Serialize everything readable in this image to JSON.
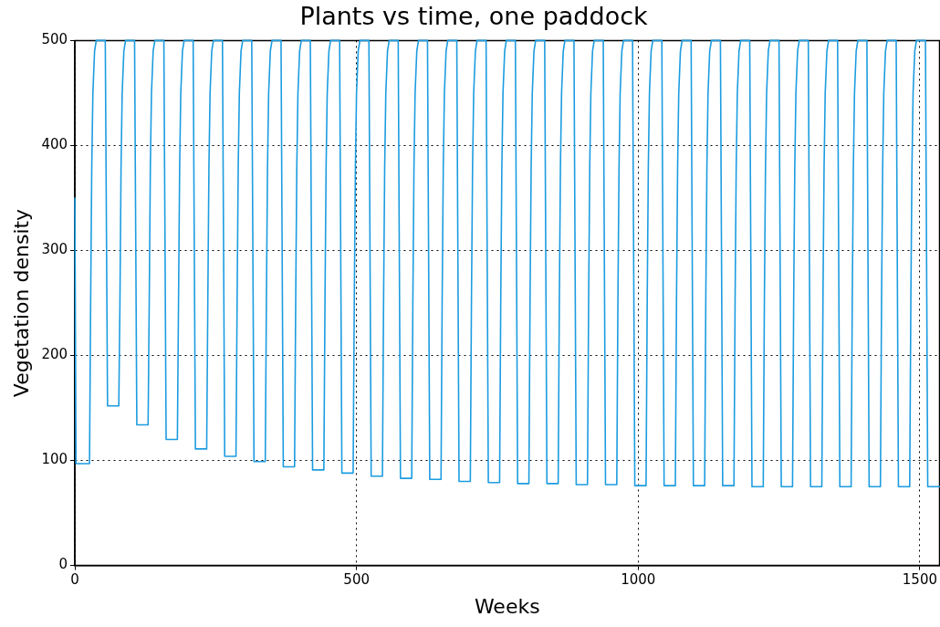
{
  "chart_data": {
    "type": "line",
    "title": "Plants vs time, one paddock",
    "xlabel": "Weeks",
    "ylabel": "Vegetation density",
    "xlim": [
      0,
      1535
    ],
    "xticks": [
      0,
      500,
      1000,
      1500
    ],
    "ylim": [
      0,
      500
    ],
    "yticks": [
      0,
      100,
      200,
      300,
      400,
      500
    ],
    "grid": true,
    "legend": false,
    "marker": "none",
    "line_style": "solid",
    "series": [
      {
        "color": "#1c9ce0",
        "x": [
          0,
          2,
          26,
          28,
          30,
          32,
          35,
          38,
          54,
          58,
          78,
          80,
          82,
          84,
          87,
          90,
          106,
          110,
          130,
          132,
          134,
          136,
          139,
          142,
          158,
          162,
          182,
          184,
          186,
          188,
          191,
          194,
          210,
          214,
          234,
          236,
          238,
          240,
          243,
          246,
          262,
          266,
          286,
          288,
          290,
          292,
          295,
          298,
          314,
          318,
          338,
          340,
          342,
          344,
          347,
          350,
          366,
          370,
          390,
          392,
          394,
          396,
          399,
          402,
          418,
          422,
          442,
          444,
          446,
          448,
          451,
          454,
          470,
          474,
          494,
          496,
          498,
          500,
          503,
          506,
          522,
          526,
          546,
          548,
          550,
          552,
          555,
          558,
          574,
          578,
          598,
          600,
          602,
          604,
          607,
          610,
          626,
          630,
          650,
          652,
          654,
          656,
          659,
          662,
          678,
          682,
          702,
          704,
          706,
          708,
          711,
          714,
          730,
          734,
          754,
          756,
          758,
          760,
          763,
          766,
          782,
          786,
          806,
          808,
          810,
          812,
          815,
          818,
          834,
          838,
          858,
          860,
          862,
          864,
          867,
          870,
          886,
          890,
          910,
          912,
          914,
          916,
          919,
          922,
          938,
          942,
          962,
          964,
          966,
          968,
          971,
          974,
          990,
          994,
          1014,
          1016,
          1018,
          1020,
          1023,
          1026,
          1042,
          1046,
          1066,
          1068,
          1070,
          1072,
          1075,
          1078,
          1094,
          1098,
          1118,
          1120,
          1122,
          1124,
          1127,
          1130,
          1146,
          1150,
          1170,
          1172,
          1174,
          1176,
          1179,
          1182,
          1198,
          1202,
          1222,
          1224,
          1226,
          1228,
          1231,
          1234,
          1250,
          1254,
          1274,
          1276,
          1278,
          1280,
          1283,
          1286,
          1302,
          1306,
          1326,
          1328,
          1330,
          1332,
          1335,
          1338,
          1354,
          1358,
          1378,
          1380,
          1382,
          1384,
          1387,
          1390,
          1406,
          1410,
          1430,
          1432,
          1434,
          1436,
          1439,
          1442,
          1458,
          1462,
          1482,
          1484,
          1486,
          1488,
          1491,
          1494,
          1510,
          1514,
          1535
        ],
        "values": [
          350,
          97,
          97,
          250,
          380,
          450,
          490,
          500,
          500,
          152,
          152,
          250,
          380,
          450,
          490,
          500,
          500,
          134,
          134,
          250,
          380,
          450,
          490,
          500,
          500,
          120,
          120,
          250,
          380,
          450,
          490,
          500,
          500,
          111,
          111,
          250,
          380,
          450,
          490,
          500,
          500,
          104,
          104,
          250,
          380,
          450,
          490,
          500,
          500,
          99,
          99,
          250,
          380,
          450,
          490,
          500,
          500,
          94,
          94,
          250,
          380,
          450,
          490,
          500,
          500,
          91,
          91,
          250,
          380,
          450,
          490,
          500,
          500,
          88,
          88,
          250,
          380,
          450,
          490,
          500,
          500,
          85,
          85,
          250,
          380,
          450,
          490,
          500,
          500,
          83,
          83,
          250,
          380,
          450,
          490,
          500,
          500,
          82,
          82,
          250,
          380,
          450,
          490,
          500,
          500,
          80,
          80,
          250,
          380,
          450,
          490,
          500,
          500,
          79,
          79,
          250,
          380,
          450,
          490,
          500,
          500,
          78,
          78,
          250,
          380,
          450,
          490,
          500,
          500,
          78,
          78,
          250,
          380,
          450,
          490,
          500,
          500,
          77,
          77,
          250,
          380,
          450,
          490,
          500,
          500,
          77,
          77,
          250,
          380,
          450,
          490,
          500,
          500,
          76,
          76,
          250,
          380,
          450,
          490,
          500,
          500,
          76,
          76,
          250,
          380,
          450,
          490,
          500,
          500,
          76,
          76,
          250,
          380,
          450,
          490,
          500,
          500,
          76,
          76,
          250,
          380,
          450,
          490,
          500,
          500,
          75,
          75,
          250,
          380,
          450,
          490,
          500,
          500,
          75,
          75,
          250,
          380,
          450,
          490,
          500,
          500,
          75,
          75,
          250,
          380,
          450,
          490,
          500,
          500,
          75,
          75,
          250,
          380,
          450,
          490,
          500,
          500,
          75,
          75,
          250,
          380,
          450,
          490,
          500,
          500,
          75,
          75,
          250,
          380,
          450,
          490,
          500,
          500,
          75,
          75
        ]
      }
    ]
  }
}
